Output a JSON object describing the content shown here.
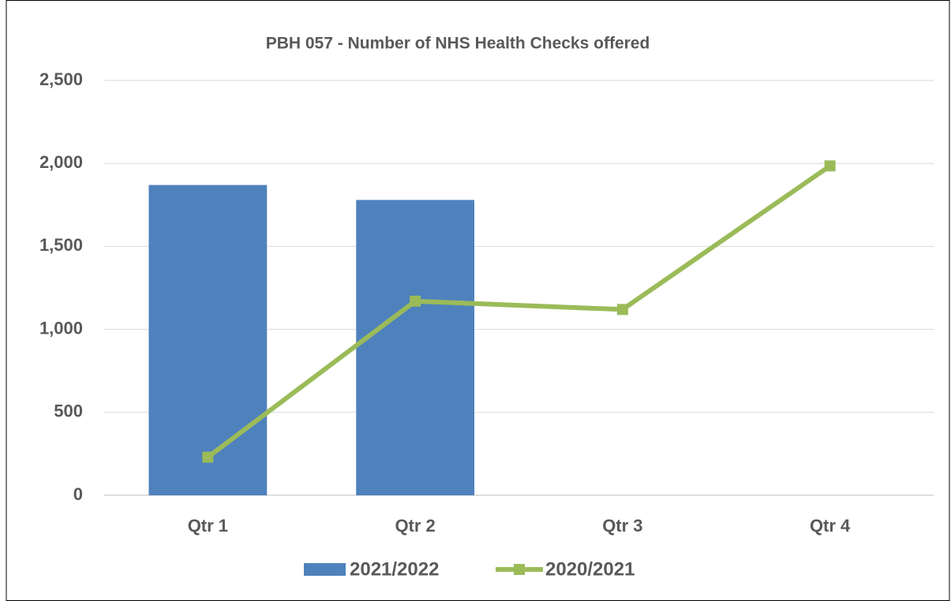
{
  "chart_data": {
    "type": "combo",
    "title": "PBH 057 - Number of NHS Health Checks offered",
    "categories": [
      "Qtr 1",
      "Qtr 2",
      "Qtr 3",
      "Qtr 4"
    ],
    "series": [
      {
        "name": "2021/2022",
        "type": "bar",
        "color": "#4f81bd",
        "values": [
          1870,
          1780,
          null,
          null
        ]
      },
      {
        "name": "2020/2021",
        "type": "line",
        "color": "#9bbb59",
        "values": [
          230,
          1170,
          1120,
          1985
        ]
      }
    ],
    "ylim": [
      0,
      2500
    ],
    "yticks": [
      0,
      500,
      {
        "value": 1000,
        "label": "1,000"
      },
      {
        "value": 1500,
        "label": "1,500"
      },
      {
        "value": 2000,
        "label": "2,000"
      },
      {
        "value": 2500,
        "label": "2,500"
      }
    ],
    "grid": true,
    "legend": "bottom"
  }
}
